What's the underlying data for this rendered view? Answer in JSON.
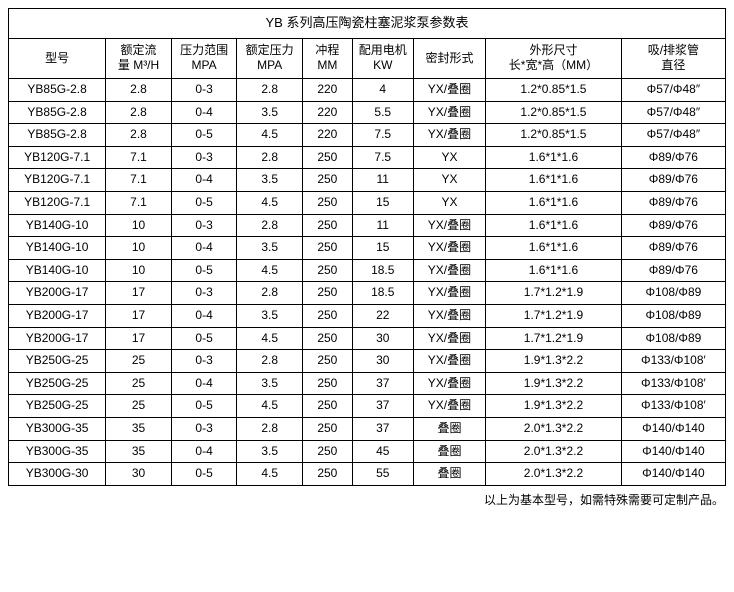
{
  "table": {
    "title": "YB 系列高压陶瓷柱塞泥浆泵参数表",
    "columns": [
      {
        "label": "型号",
        "class": "col-model"
      },
      {
        "label": "额定流\n量 M³/H",
        "class": "col-flow"
      },
      {
        "label": "压力范围\nMPA",
        "class": "col-prange"
      },
      {
        "label": "额定压力\nMPA",
        "class": "col-prated"
      },
      {
        "label": "冲程\nMM",
        "class": "col-stroke"
      },
      {
        "label": "配用电机\nKW",
        "class": "col-motor"
      },
      {
        "label": "密封形式",
        "class": "col-seal"
      },
      {
        "label": "外形尺寸\n长*宽*高（MM）",
        "class": "col-size"
      },
      {
        "label": "吸/排浆管\n直径",
        "class": "col-pipe"
      }
    ],
    "rows": [
      [
        "YB85G-2.8",
        "2.8",
        "0-3",
        "2.8",
        "220",
        "4",
        "YX/叠圈",
        "1.2*0.85*1.5",
        "Φ57/Φ48″"
      ],
      [
        "YB85G-2.8",
        "2.8",
        "0-4",
        "3.5",
        "220",
        "5.5",
        "YX/叠圈",
        "1.2*0.85*1.5",
        "Φ57/Φ48″"
      ],
      [
        "YB85G-2.8",
        "2.8",
        "0-5",
        "4.5",
        "220",
        "7.5",
        "YX/叠圈",
        "1.2*0.85*1.5",
        "Φ57/Φ48″"
      ],
      [
        "YB120G-7.1",
        "7.1",
        "0-3",
        "2.8",
        "250",
        "7.5",
        "YX",
        "1.6*1*1.6",
        "Φ89/Φ76"
      ],
      [
        "YB120G-7.1",
        "7.1",
        "0-4",
        "3.5",
        "250",
        "11",
        "YX",
        "1.6*1*1.6",
        "Φ89/Φ76"
      ],
      [
        "YB120G-7.1",
        "7.1",
        "0-5",
        "4.5",
        "250",
        "15",
        "YX",
        "1.6*1*1.6",
        "Φ89/Φ76"
      ],
      [
        "YB140G-10",
        "10",
        "0-3",
        "2.8",
        "250",
        "11",
        "YX/叠圈",
        "1.6*1*1.6",
        "Φ89/Φ76"
      ],
      [
        "YB140G-10",
        "10",
        "0-4",
        "3.5",
        "250",
        "15",
        "YX/叠圈",
        "1.6*1*1.6",
        "Φ89/Φ76"
      ],
      [
        "YB140G-10",
        "10",
        "0-5",
        "4.5",
        "250",
        "18.5",
        "YX/叠圈",
        "1.6*1*1.6",
        "Φ89/Φ76"
      ],
      [
        "YB200G-17",
        "17",
        "0-3",
        "2.8",
        "250",
        "18.5",
        "YX/叠圈",
        "1.7*1.2*1.9",
        "Φ108/Φ89"
      ],
      [
        "YB200G-17",
        "17",
        "0-4",
        "3.5",
        "250",
        "22",
        "YX/叠圈",
        "1.7*1.2*1.9",
        "Φ108/Φ89"
      ],
      [
        "YB200G-17",
        "17",
        "0-5",
        "4.5",
        "250",
        "30",
        "YX/叠圈",
        "1.7*1.2*1.9",
        "Φ108/Φ89"
      ],
      [
        "YB250G-25",
        "25",
        "0-3",
        "2.8",
        "250",
        "30",
        "YX/叠圈",
        "1.9*1.3*2.2",
        "Φ133/Φ108′"
      ],
      [
        "YB250G-25",
        "25",
        "0-4",
        "3.5",
        "250",
        "37",
        "YX/叠圈",
        "1.9*1.3*2.2",
        "Φ133/Φ108′"
      ],
      [
        "YB250G-25",
        "25",
        "0-5",
        "4.5",
        "250",
        "37",
        "YX/叠圈",
        "1.9*1.3*2.2",
        "Φ133/Φ108′"
      ],
      [
        "YB300G-35",
        "35",
        "0-3",
        "2.8",
        "250",
        "37",
        "叠圈",
        "2.0*1.3*2.2",
        "Φ140/Φ140"
      ],
      [
        "YB300G-35",
        "35",
        "0-4",
        "3.5",
        "250",
        "45",
        "叠圈",
        "2.0*1.3*2.2",
        "Φ140/Φ140"
      ],
      [
        "YB300G-30",
        "30",
        "0-5",
        "4.5",
        "250",
        "55",
        "叠圈",
        "2.0*1.3*2.2",
        "Φ140/Φ140"
      ]
    ]
  },
  "footer_note": "以上为基本型号，如需特殊需要可定制产品。",
  "styling": {
    "background_color": "#ffffff",
    "border_color": "#000000",
    "text_color": "#000000",
    "font_family": "Microsoft YaHei, Arial, sans-serif",
    "title_fontsize": 13,
    "header_fontsize": 12,
    "cell_fontsize": 12
  }
}
